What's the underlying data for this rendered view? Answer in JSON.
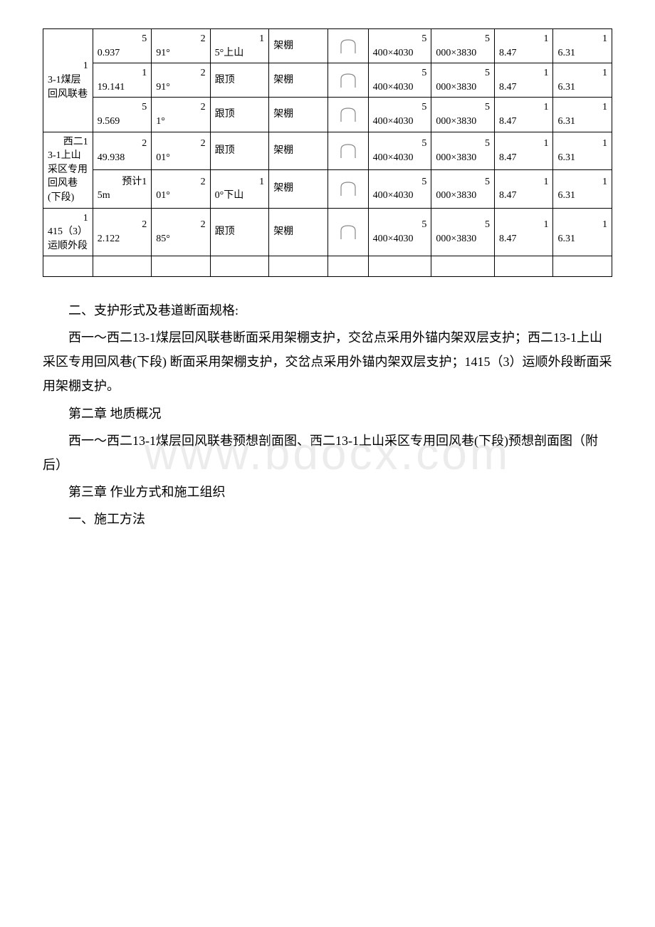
{
  "table": {
    "rows": [
      {
        "label": "13-1煤层回风联巷",
        "cells": [
          "50.937",
          "291°",
          "15°上山",
          "架棚",
          "",
          "5400×4030",
          "5000×3830",
          "18.47",
          "16.31"
        ]
      },
      {
        "label": "",
        "cells": [
          "119.141",
          "291°",
          "跟顶",
          "架棚",
          "",
          "5400×4030",
          "5000×3830",
          "18.47",
          "16.31"
        ]
      },
      {
        "label": "",
        "cells": [
          "59.569",
          "21°",
          "跟顶",
          "架棚",
          "",
          "5400×4030",
          "5000×3830",
          "18.47",
          "16.31"
        ]
      },
      {
        "label": "西二13-1上山采区专用回风巷(下段)",
        "cells": [
          "249.938",
          "201°",
          "跟顶",
          "架棚",
          "",
          "5400×4030",
          "5000×3830",
          "18.47",
          "16.31"
        ]
      },
      {
        "label": "",
        "cells": [
          "预计15m",
          "201°",
          "10°下山",
          "架棚",
          "",
          "5400×4030",
          "5000×3830",
          "18.47",
          "16.31"
        ]
      },
      {
        "label": "1415（3）运顺外段",
        "cells": [
          "22.122",
          "285°",
          "跟顶",
          "架棚",
          "",
          "5400×4030",
          "5000×3830",
          "18.47",
          "16.31"
        ]
      }
    ],
    "colors": {
      "border": "#000000",
      "text": "#000000",
      "background": "#ffffff"
    }
  },
  "paragraphs": {
    "p1": "二、支护形式及巷道断面规格:",
    "p2": "西一～西二13-1煤层回风联巷断面采用架棚支护，交岔点采用外锚内架双层支护；西二13-1上山采区专用回风巷(下段) 断面采用架棚支护，交岔点采用外锚内架双层支护；1415（3）运顺外段断面采用架棚支护。",
    "p3": "第二章 地质概况",
    "p4": "西一～西二13-1煤层回风联巷预想剖面图、西二13-1上山采区专用回风巷(下段)预想剖面图（附后）",
    "p5": "第三章 作业方式和施工组织",
    "p6": "一、施工方法"
  },
  "watermark": "www.bdocx.com",
  "shape": {
    "stroke": "#888888",
    "fill": "none"
  }
}
